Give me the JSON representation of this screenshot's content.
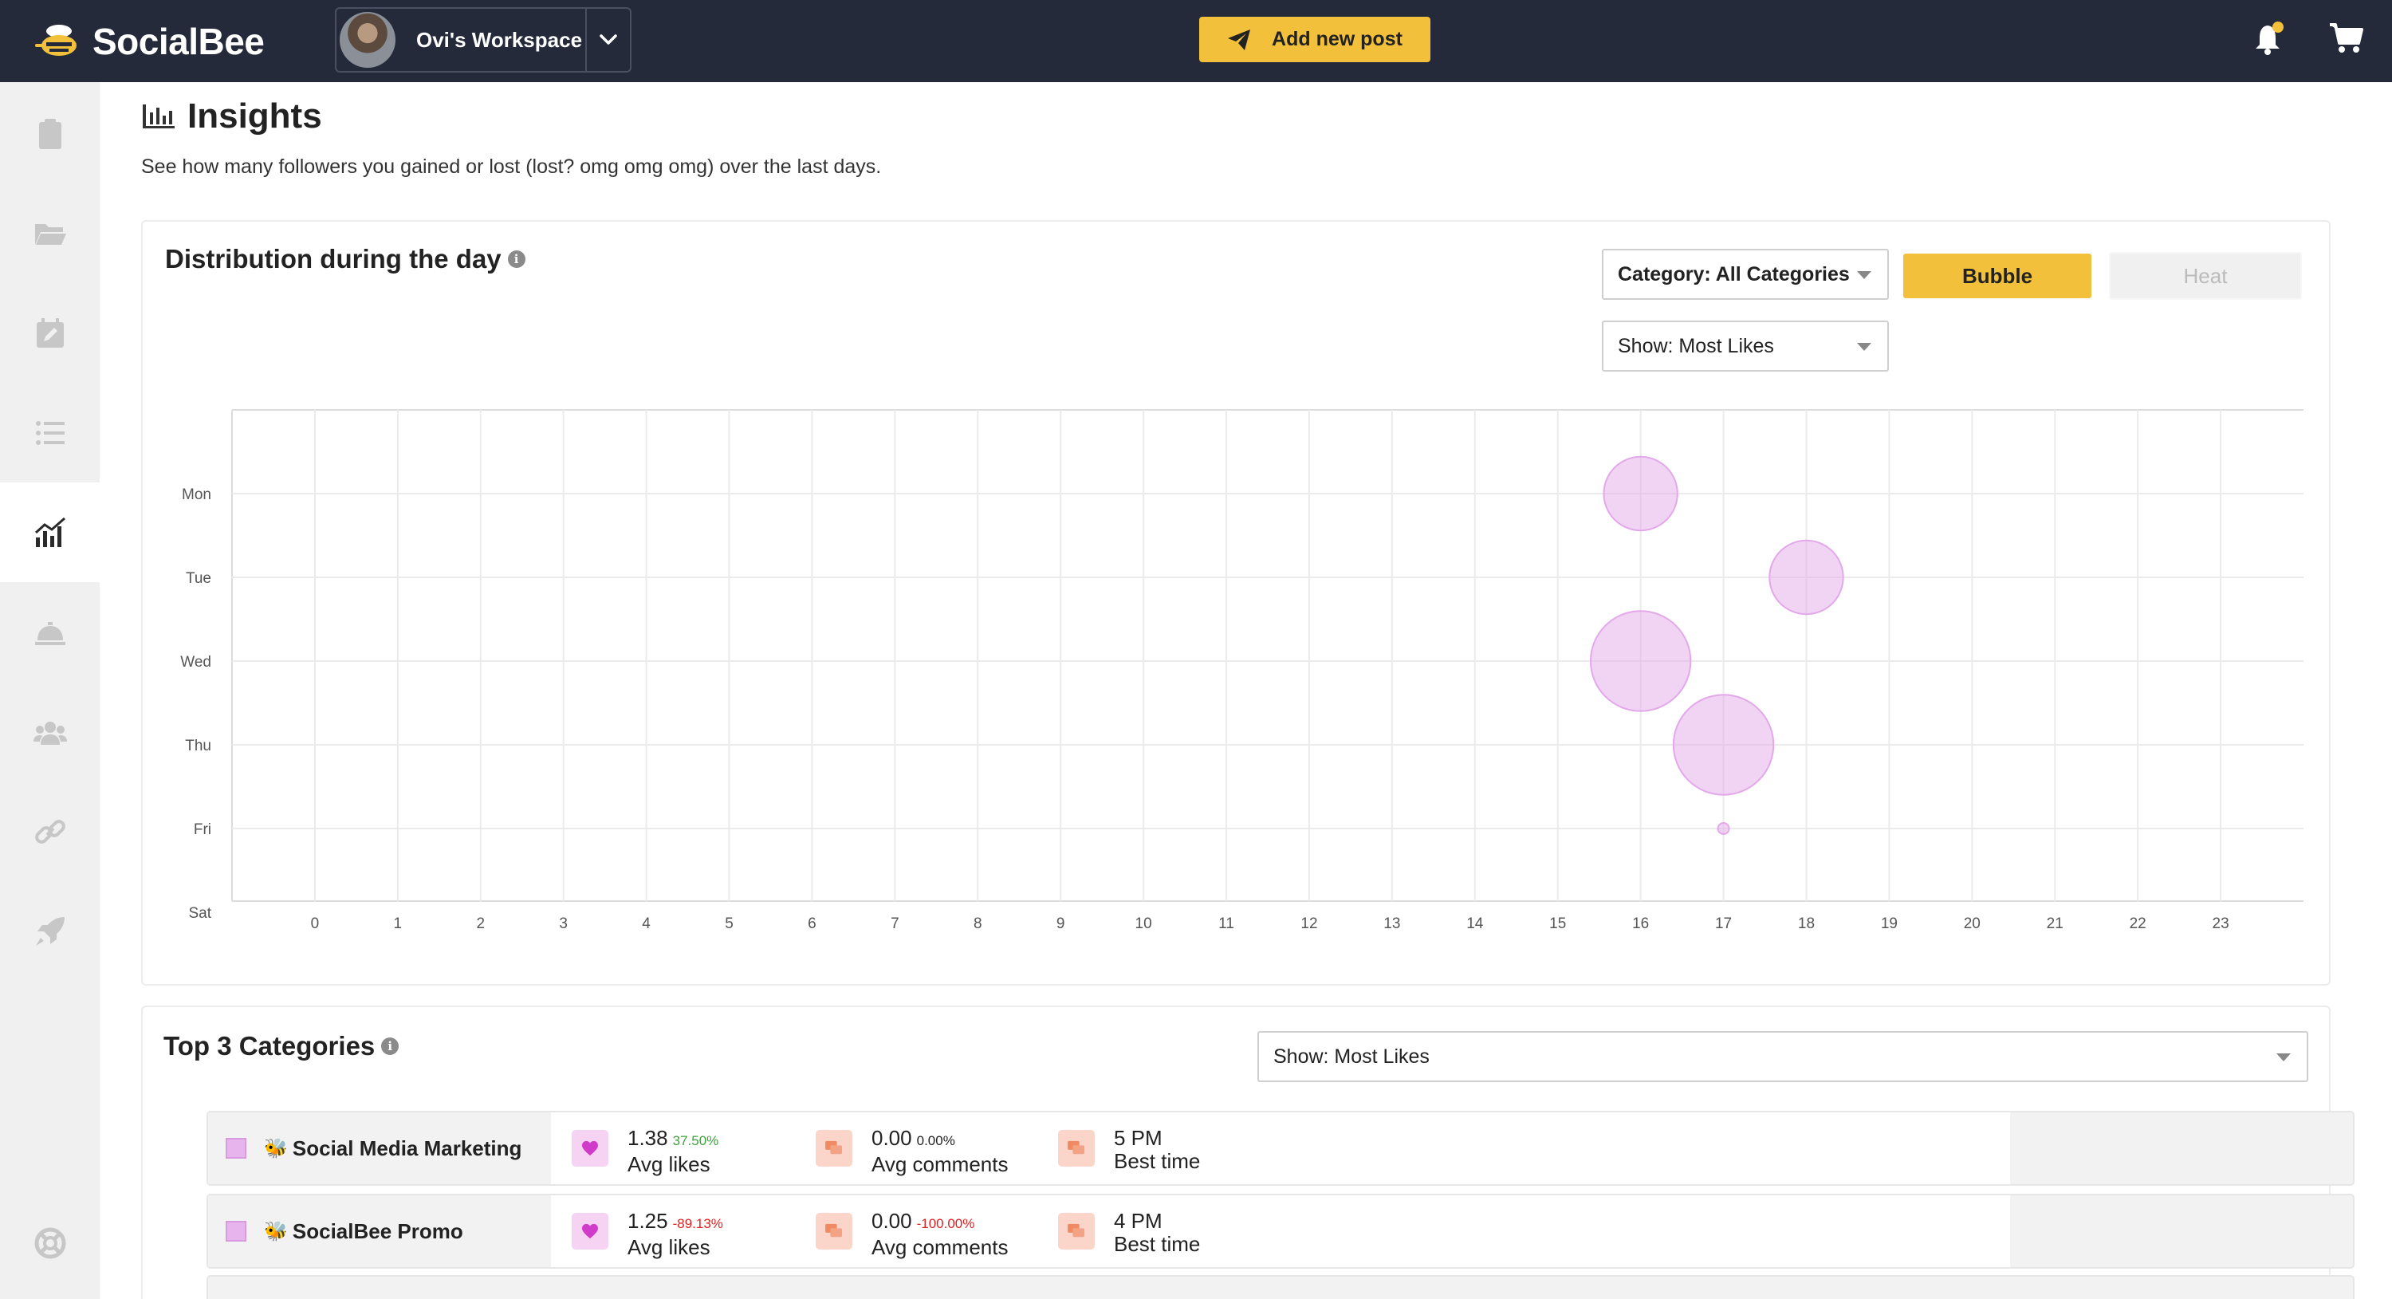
{
  "app": {
    "logo_text": "SocialBee",
    "workspace_name": "Ovi's Workspace",
    "add_post_label": "Add new post",
    "accent": "#f2c03a"
  },
  "sidebar": {
    "items": [
      {
        "name": "clipboard-icon",
        "active": false
      },
      {
        "name": "folder-icon",
        "active": false
      },
      {
        "name": "calendar-edit-icon",
        "active": false
      },
      {
        "name": "list-icon",
        "active": false
      },
      {
        "name": "analytics-icon",
        "active": true
      },
      {
        "name": "concierge-bell-icon",
        "active": false
      },
      {
        "name": "users-icon",
        "active": false
      },
      {
        "name": "link-icon",
        "active": false
      },
      {
        "name": "rocket-icon",
        "active": false
      },
      {
        "name": "lifebuoy-icon",
        "active": false
      }
    ]
  },
  "page": {
    "title": "Insights",
    "description": "See how many followers you gained or lost (lost? omg omg omg) over the last days."
  },
  "distribution": {
    "title": "Distribution during the day",
    "category_select": "Category: All Categories",
    "show_select": "Show: Most Likes",
    "bubble_label": "Bubble",
    "heat_label": "Heat",
    "active_mode": "Bubble"
  },
  "chart_data": {
    "type": "scatter",
    "subtype": "bubble",
    "title": "",
    "xlabel": "",
    "ylabel": "",
    "x_ticks": [
      "0",
      "1",
      "2",
      "3",
      "4",
      "5",
      "6",
      "7",
      "8",
      "9",
      "10",
      "11",
      "12",
      "13",
      "14",
      "15",
      "16",
      "17",
      "18",
      "19",
      "20",
      "21",
      "22",
      "23"
    ],
    "y_categories": [
      "Mon",
      "Tue",
      "Wed",
      "Thu",
      "Fri",
      "Sat"
    ],
    "xlim": [
      -1,
      24
    ],
    "grid": true,
    "bubble_color": "#e3a8ea",
    "points": [
      {
        "x": 16,
        "y": "Mon",
        "size": 1.4
      },
      {
        "x": 18,
        "y": "Tue",
        "size": 1.4
      },
      {
        "x": 16,
        "y": "Wed",
        "size": 1.9
      },
      {
        "x": 17,
        "y": "Thu",
        "size": 1.9
      },
      {
        "x": 17,
        "y": "Fri",
        "size": 0.1
      }
    ]
  },
  "top_categories": {
    "title": "Top 3 Categories",
    "show_select": "Show: Most Likes",
    "rows": [
      {
        "emoji": "🐝",
        "name": "Social Media Marketing",
        "likes": "1.38",
        "likes_pct": "37.50%",
        "likes_trend": "up",
        "likes_label": "Avg likes",
        "comments": "0.00",
        "comments_pct": "0.00%",
        "comments_trend": "flat",
        "comments_label": "Avg comments",
        "best_time": "5 PM",
        "best_time_label": "Best time"
      },
      {
        "emoji": "🐝",
        "name": "SocialBee Promo",
        "likes": "1.25",
        "likes_pct": "-89.13%",
        "likes_trend": "down",
        "likes_label": "Avg likes",
        "comments": "0.00",
        "comments_pct": "-100.00%",
        "comments_trend": "down",
        "comments_label": "Avg comments",
        "best_time": "4 PM",
        "best_time_label": "Best time"
      }
    ]
  }
}
